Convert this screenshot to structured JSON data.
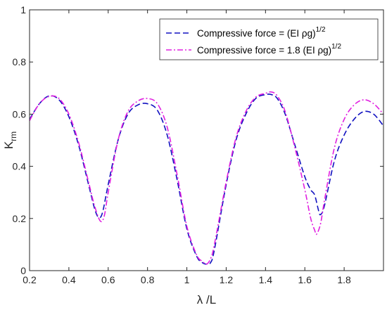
{
  "chart_data": {
    "type": "line",
    "title": "",
    "xlabel": "λ /L",
    "ylabel": {
      "base": "K",
      "sub": "rm"
    },
    "xlim": [
      0.2,
      2.0
    ],
    "ylim": [
      0,
      1
    ],
    "xticks": [
      "0.2",
      "0.4",
      "0.6",
      "0.8",
      "1",
      "1.2",
      "1.4",
      "1.6",
      "1.8"
    ],
    "xtick_values": [
      0.2,
      0.4,
      0.6,
      0.8,
      1.0,
      1.2,
      1.4,
      1.6,
      1.8
    ],
    "yticks": [
      "0",
      "0.2",
      "0.4",
      "0.6",
      "0.8",
      "1"
    ],
    "ytick_values": [
      0,
      0.2,
      0.4,
      0.6,
      0.8,
      1.0
    ],
    "grid": false,
    "legend_position": "top-right",
    "series": [
      {
        "name": "Compressive force = (EI ρg)",
        "name_sup": "1/2",
        "color": "#1010c0",
        "dash": "dashed",
        "x": [
          0.2,
          0.25,
          0.3,
          0.35,
          0.4,
          0.45,
          0.5,
          0.53,
          0.55,
          0.57,
          0.6,
          0.65,
          0.7,
          0.75,
          0.8,
          0.85,
          0.9,
          0.95,
          1.0,
          1.05,
          1.08,
          1.1,
          1.12,
          1.14,
          1.2,
          1.25,
          1.3,
          1.35,
          1.4,
          1.43,
          1.46,
          1.5,
          1.55,
          1.6,
          1.63,
          1.65,
          1.67,
          1.68,
          1.7,
          1.75,
          1.8,
          1.85,
          1.9,
          1.95,
          2.0
        ],
        "y": [
          0.58,
          0.64,
          0.67,
          0.655,
          0.59,
          0.48,
          0.33,
          0.24,
          0.205,
          0.22,
          0.33,
          0.5,
          0.6,
          0.635,
          0.64,
          0.615,
          0.52,
          0.35,
          0.16,
          0.055,
          0.03,
          0.025,
          0.03,
          0.08,
          0.33,
          0.5,
          0.6,
          0.66,
          0.675,
          0.675,
          0.66,
          0.6,
          0.48,
          0.36,
          0.31,
          0.29,
          0.23,
          0.215,
          0.25,
          0.42,
          0.52,
          0.58,
          0.61,
          0.6,
          0.555
        ]
      },
      {
        "name": "Compressive force = 1.8 (EI ρg)",
        "name_sup": "1/2",
        "color": "#e020e0",
        "dash": "dashdot",
        "x": [
          0.2,
          0.25,
          0.3,
          0.35,
          0.4,
          0.45,
          0.5,
          0.53,
          0.56,
          0.58,
          0.6,
          0.65,
          0.7,
          0.75,
          0.8,
          0.85,
          0.9,
          0.95,
          1.0,
          1.05,
          1.08,
          1.1,
          1.12,
          1.14,
          1.2,
          1.25,
          1.3,
          1.35,
          1.4,
          1.43,
          1.46,
          1.5,
          1.55,
          1.6,
          1.63,
          1.65,
          1.66,
          1.68,
          1.7,
          1.75,
          1.8,
          1.85,
          1.9,
          1.95,
          2.0
        ],
        "y": [
          0.575,
          0.64,
          0.668,
          0.66,
          0.6,
          0.49,
          0.34,
          0.25,
          0.19,
          0.21,
          0.3,
          0.5,
          0.61,
          0.65,
          0.66,
          0.64,
          0.55,
          0.37,
          0.17,
          0.06,
          0.035,
          0.025,
          0.045,
          0.1,
          0.34,
          0.51,
          0.61,
          0.665,
          0.68,
          0.685,
          0.67,
          0.61,
          0.47,
          0.31,
          0.2,
          0.155,
          0.14,
          0.18,
          0.27,
          0.47,
          0.58,
          0.635,
          0.655,
          0.64,
          0.6
        ]
      }
    ]
  }
}
